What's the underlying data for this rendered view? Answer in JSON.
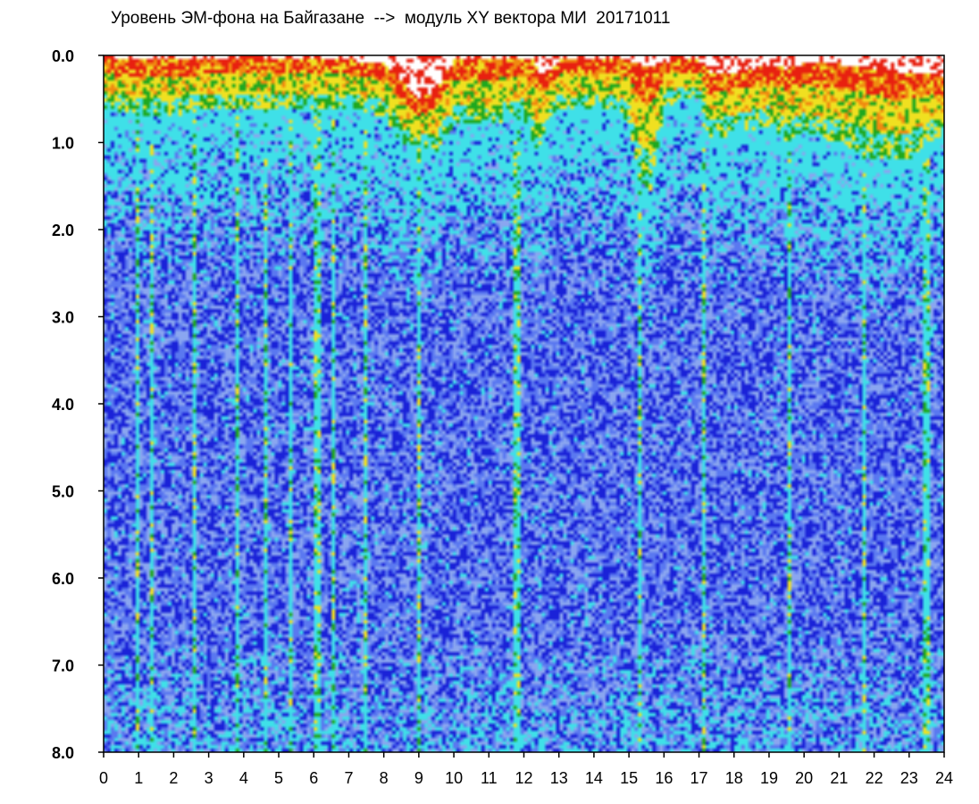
{
  "chart_data": {
    "type": "heatmap",
    "title": "Уровень ЭМ-фона на Байгазане  -->  модуль XY вектора МИ  20171011",
    "xlabel": "",
    "ylabel": "",
    "x_range": [
      0,
      24
    ],
    "y_range": [
      0.0,
      8.0
    ],
    "y_inverted": true,
    "grid": false,
    "x_ticks": [
      "0",
      "1",
      "2",
      "3",
      "4",
      "5",
      "6",
      "7",
      "8",
      "9",
      "10",
      "11",
      "12",
      "13",
      "14",
      "15",
      "16",
      "17",
      "18",
      "19",
      "20",
      "21",
      "22",
      "23",
      "24"
    ],
    "y_ticks": [
      "0.0",
      "1.0",
      "2.0",
      "3.0",
      "4.0",
      "5.0",
      "6.0",
      "7.0",
      "8.0"
    ],
    "color_scale": [
      "#1a22d8",
      "#5a78f0",
      "#8aa6f0",
      "#3fe0e8",
      "#1fa81f",
      "#f0e020",
      "#f08a10",
      "#e82010"
    ],
    "band_profile": {
      "hours": [
        0,
        1,
        2,
        3,
        4,
        5,
        6,
        7,
        8,
        8.5,
        9,
        9.5,
        10,
        11,
        12,
        12.3,
        12.5,
        13,
        14,
        14.7,
        15,
        15.3,
        15.6,
        16,
        16.5,
        17,
        17.3,
        18,
        19,
        19.5,
        20,
        21,
        22,
        23,
        23.5,
        24
      ],
      "red_top": [
        0.05,
        0.05,
        0.05,
        0.05,
        0.05,
        0.05,
        0.05,
        0.05,
        0.1,
        0.3,
        0.5,
        0.4,
        0.05,
        0.05,
        0.05,
        0.05,
        0.3,
        0.05,
        0.05,
        0.05,
        0.05,
        0.1,
        0.15,
        0.1,
        0.05,
        0.05,
        0.2,
        0.2,
        0.1,
        0.15,
        0.1,
        0.1,
        0.15,
        0.2,
        0.2,
        0.25
      ],
      "cyan_start": [
        0.6,
        0.7,
        0.7,
        0.6,
        0.6,
        0.6,
        0.6,
        0.6,
        0.7,
        1.0,
        1.1,
        1.1,
        0.8,
        0.8,
        0.7,
        1.1,
        1.0,
        0.6,
        0.6,
        0.6,
        0.8,
        1.4,
        1.6,
        0.6,
        0.5,
        0.5,
        1.0,
        0.9,
        0.8,
        1.0,
        0.9,
        1.0,
        1.2,
        1.2,
        1.0,
        0.9
      ]
    },
    "vertical_streaks": [
      1.0,
      1.4,
      2.6,
      3.8,
      4.6,
      5.3,
      6.1,
      6.6,
      7.5,
      9.0,
      11.8,
      15.3,
      17.1,
      19.6,
      21.7,
      23.5
    ]
  }
}
